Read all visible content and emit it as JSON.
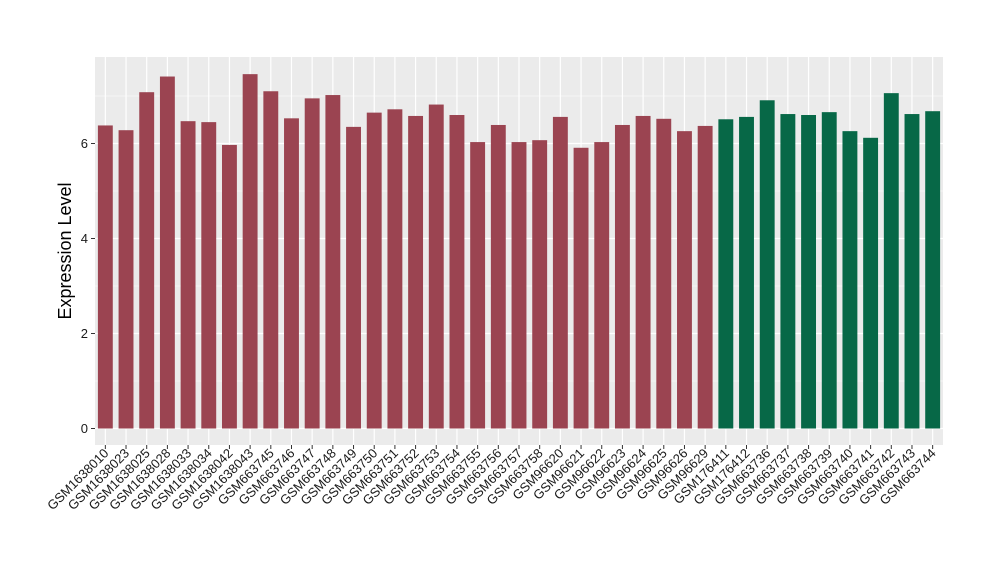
{
  "chart_data": {
    "type": "bar",
    "title": "",
    "xlabel": "",
    "ylabel": "Expression Level",
    "ylim": [
      0,
      7.7
    ],
    "yticks": [
      0,
      2,
      4,
      6
    ],
    "grid": true,
    "legend": "none",
    "colors": {
      "group1": "#9b4451",
      "group2": "#076847",
      "panel": "#ebebeb",
      "grid": "#ffffff"
    },
    "categories": [
      "GSM1638010",
      "GSM1638023",
      "GSM1638025",
      "GSM1638028",
      "GSM1638033",
      "GSM1638034",
      "GSM1638042",
      "GSM1638043",
      "GSM663745",
      "GSM663746",
      "GSM663747",
      "GSM663748",
      "GSM663749",
      "GSM663750",
      "GSM663751",
      "GSM663752",
      "GSM663753",
      "GSM663754",
      "GSM663755",
      "GSM663756",
      "GSM663757",
      "GSM663758",
      "GSM96620",
      "GSM96621",
      "GSM96622",
      "GSM96623",
      "GSM96624",
      "GSM96625",
      "GSM96626",
      "GSM96629",
      "GSM176411",
      "GSM176412",
      "GSM663736",
      "GSM663737",
      "GSM663738",
      "GSM663739",
      "GSM663740",
      "GSM663741",
      "GSM663742",
      "GSM663743",
      "GSM663744"
    ],
    "values": [
      6.38,
      6.28,
      7.08,
      7.41,
      6.47,
      6.45,
      5.97,
      7.46,
      7.1,
      6.53,
      6.95,
      7.02,
      6.35,
      6.65,
      6.72,
      6.58,
      6.82,
      6.6,
      6.03,
      6.39,
      6.03,
      6.07,
      6.56,
      5.91,
      6.03,
      6.39,
      6.58,
      6.52,
      6.26,
      6.37,
      6.51,
      6.56,
      6.91,
      6.62,
      6.6,
      6.66,
      6.26,
      6.12,
      7.06,
      6.62,
      6.68
    ],
    "groups": [
      1,
      1,
      1,
      1,
      1,
      1,
      1,
      1,
      1,
      1,
      1,
      1,
      1,
      1,
      1,
      1,
      1,
      1,
      1,
      1,
      1,
      1,
      1,
      1,
      1,
      1,
      1,
      1,
      1,
      1,
      2,
      2,
      2,
      2,
      2,
      2,
      2,
      2,
      2,
      2,
      2
    ]
  }
}
